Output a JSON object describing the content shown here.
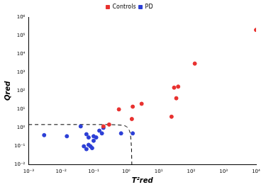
{
  "chart_data": {
    "type": "scatter",
    "x_label": "T²red",
    "y_label": "Qred",
    "log": true,
    "grid": false,
    "legend": "top",
    "xlim": [
      0.001,
      10000
    ],
    "ylim": [
      0.01,
      1000000
    ],
    "xticks": [
      {
        "value": 0.001,
        "label": "10⁻³"
      },
      {
        "value": 0.01,
        "label": "10⁻²"
      },
      {
        "value": 0.1,
        "label": "10⁻¹"
      },
      {
        "value": 1,
        "label": "10⁰"
      },
      {
        "value": 10,
        "label": "10¹"
      },
      {
        "value": 100,
        "label": "10²"
      },
      {
        "value": 1000,
        "label": "10³"
      },
      {
        "value": 10000,
        "label": "10⁴"
      }
    ],
    "yticks": [
      {
        "value": 0.01,
        "label": "10⁻²"
      },
      {
        "value": 0.1,
        "label": "10⁻¹"
      },
      {
        "value": 1,
        "label": "10⁰"
      },
      {
        "value": 10,
        "label": "10¹"
      },
      {
        "value": 100,
        "label": "10²"
      },
      {
        "value": 1000,
        "label": "10³"
      },
      {
        "value": 10000,
        "label": "10⁴"
      },
      {
        "value": 100000,
        "label": "10⁵"
      },
      {
        "value": 1000000,
        "label": "10⁶"
      }
    ],
    "series": [
      {
        "name": "Controls",
        "color": "#e8312f",
        "marker": "circle",
        "x": [
          0.2,
          0.3,
          0.6,
          1.5,
          1.6,
          3,
          25,
          30,
          35,
          40,
          130,
          10000
        ],
        "values": [
          1.2,
          1.5,
          10,
          3,
          14,
          20,
          4,
          150,
          40,
          170,
          3000,
          200000
        ]
      },
      {
        "name": "PD",
        "color": "#2c3fd6",
        "marker": "circle",
        "x": [
          0.003,
          0.015,
          0.04,
          0.05,
          0.06,
          0.06,
          0.07,
          0.07,
          0.08,
          0.09,
          0.1,
          0.1,
          0.12,
          0.15,
          0.18,
          0.2,
          0.7,
          1.6
        ],
        "values": [
          0.4,
          0.35,
          1.2,
          0.1,
          0.07,
          0.45,
          0.12,
          0.3,
          0.1,
          0.08,
          0.35,
          0.2,
          0.3,
          0.7,
          0.5,
          1.0,
          0.5,
          0.5
        ]
      }
    ],
    "boundary": {
      "color": "#000000",
      "line_style": "dashed",
      "x": [
        0.001,
        0.1,
        0.5,
        1.0,
        1.3,
        1.45,
        1.5
      ],
      "values": [
        1.5,
        1.5,
        1.45,
        1.2,
        0.6,
        0.1,
        0.01
      ]
    }
  }
}
